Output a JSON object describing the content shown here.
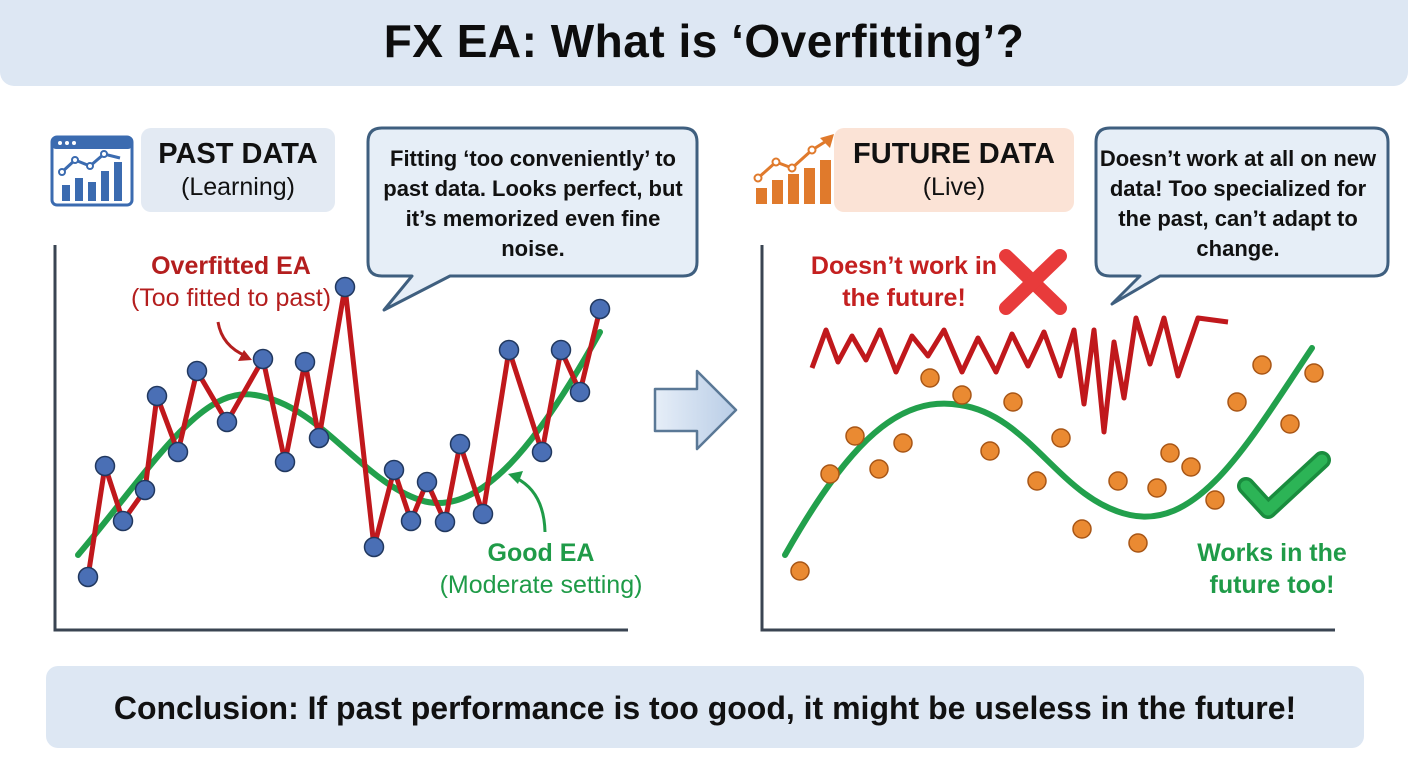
{
  "title": "FX EA: What is ‘Overfitting’?",
  "past_panel": {
    "label_line1": "PAST DATA",
    "label_line2": "(Learning)",
    "icon": "bar-line-chart-window-icon",
    "bubble_text": "Fitting ‘too conveniently’ to past data. Looks perfect, but it’s memorized even fine noise.",
    "overfit_label": "Overfitted EA",
    "overfit_sublabel": "(Too fitted to past)",
    "good_label": "Good EA",
    "good_sublabel": "(Moderate setting)"
  },
  "future_panel": {
    "label_line1": "FUTURE DATA",
    "label_line2": "(Live)",
    "icon": "rising-bar-chart-arrow-icon",
    "bubble_text": "Doesn’t work at all on new data! Too specialized for the past, can’t adapt to change.",
    "fail_label": "Doesn’t work in the future!",
    "works_label": "Works in the future too!",
    "fail_icon": "red-x-icon",
    "success_icon": "green-check-icon"
  },
  "conclusion": "Conclusion: If past performance is too good, it might be useless in the future!",
  "colors": {
    "title_bg": "#dde7f3",
    "overfit_line": "#c0181c",
    "good_curve": "#1f9b48",
    "past_points": "#4a6fb5",
    "future_points": "#ea8a32",
    "bubble_border": "#3f5f7f",
    "bubble_fill": "#e6eef7"
  }
}
